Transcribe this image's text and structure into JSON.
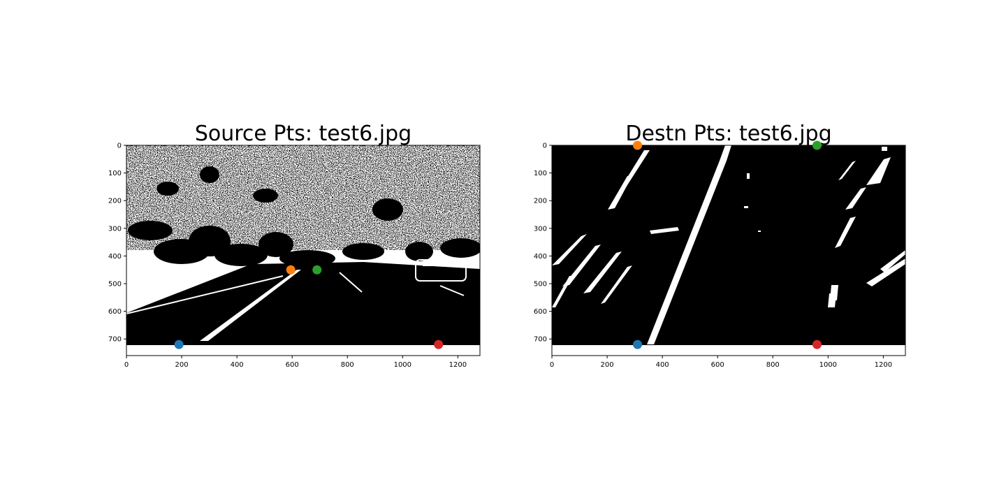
{
  "chart_data": [
    {
      "type": "scatter",
      "title": "Source Pts: test6.jpg",
      "xlabel": "",
      "ylabel": "",
      "xlim": [
        0,
        1280
      ],
      "ylim": [
        760,
        0
      ],
      "grid": false,
      "background": "binary-thresholded road image (white/black)",
      "xticks": [
        0,
        200,
        400,
        600,
        800,
        1000,
        1200
      ],
      "yticks": [
        0,
        100,
        200,
        300,
        400,
        500,
        600,
        700
      ],
      "points": [
        {
          "x": 190,
          "y": 720,
          "color": "#1f77b4"
        },
        {
          "x": 595,
          "y": 450,
          "color": "#ff7f0e"
        },
        {
          "x": 690,
          "y": 450,
          "color": "#2ca02c"
        },
        {
          "x": 1130,
          "y": 720,
          "color": "#d62728"
        }
      ]
    },
    {
      "type": "scatter",
      "title": "Destn Pts: test6.jpg",
      "xlabel": "",
      "ylabel": "",
      "xlim": [
        0,
        1280
      ],
      "ylim": [
        760,
        0
      ],
      "grid": false,
      "background": "binary warped (bird's-eye) lane image, mostly black",
      "xticks": [
        0,
        200,
        400,
        600,
        800,
        1000,
        1200
      ],
      "yticks": [
        0,
        100,
        200,
        300,
        400,
        500,
        600,
        700
      ],
      "points": [
        {
          "x": 310,
          "y": 720,
          "color": "#1f77b4"
        },
        {
          "x": 310,
          "y": 0,
          "color": "#ff7f0e"
        },
        {
          "x": 960,
          "y": 0,
          "color": "#2ca02c"
        },
        {
          "x": 960,
          "y": 720,
          "color": "#d62728"
        }
      ]
    }
  ]
}
